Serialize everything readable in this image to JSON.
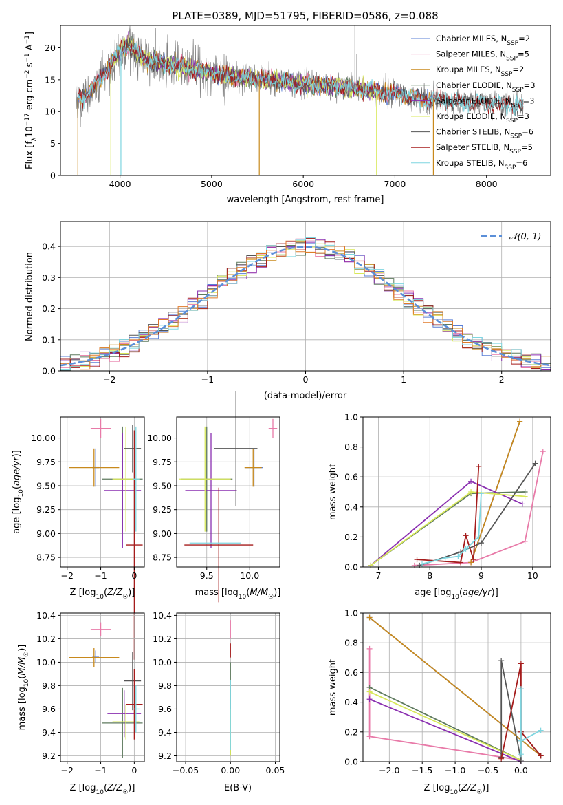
{
  "title": "PLATE=0389, MJD=51795, FIBERID=0586, z=0.088",
  "colors": {
    "Chabrier MILES": "#5a7fd6",
    "Salpeter MILES": "#e87aa8",
    "Kroupa MILES": "#c8891c",
    "Chabrier ELODIE": "#5e7a5e",
    "Salpeter ELODIE": "#8a2fb0",
    "Kroupa ELODIE": "#d8e85a",
    "Chabrier STELIB": "#555555",
    "Salpeter STELIB": "#a51c1c",
    "Kroupa STELIB": "#7fd6e0",
    "extra_orange": "#e07a28",
    "normal": "#5b8fd8",
    "grid": "#b0b0b0"
  },
  "legend1": [
    {
      "name": "Chabrier MILES",
      "nssp": "2"
    },
    {
      "name": "Salpeter MILES",
      "nssp": "5"
    },
    {
      "name": "Kroupa MILES",
      "nssp": "2"
    },
    {
      "name": "Chabrier ELODIE",
      "nssp": "3"
    },
    {
      "name": "Salpeter ELODIE",
      "nssp": "3"
    },
    {
      "name": "Kroupa ELODIE",
      "nssp": "3"
    },
    {
      "name": "Chabrier STELIB",
      "nssp": "6"
    },
    {
      "name": "Salpeter STELIB",
      "nssp": "5"
    },
    {
      "name": "Kroupa STELIB",
      "nssp": "6"
    }
  ],
  "chart_data": [
    {
      "type": "line",
      "title": "PLATE=0389, MJD=51795, FIBERID=0586, z=0.088",
      "xlabel": "wavelength [Angstrom, rest frame]",
      "ylabel": "Flux [f_λ 10^-17 erg cm^-2 s^-1 A^-1]",
      "xlim": [
        3350,
        8700
      ],
      "ylim": [
        0,
        23.5
      ],
      "xticks": [
        4000,
        5000,
        6000,
        7000,
        8000
      ],
      "yticks": [
        0,
        5,
        10,
        15,
        20
      ],
      "spectrum_trend": {
        "x": [
          3520,
          3600,
          3700,
          3800,
          3900,
          4000,
          4100,
          4200,
          4300,
          4500,
          4800,
          5100,
          5400,
          5700,
          6000,
          6300,
          6600,
          6900,
          7200,
          7500,
          7800,
          8100,
          8400
        ],
        "y": [
          12.0,
          12.5,
          13.5,
          15.5,
          17.5,
          19.5,
          20.5,
          19.0,
          18.0,
          17.5,
          16.8,
          15.7,
          15.3,
          14.8,
          14.3,
          14.0,
          13.7,
          13.0,
          12.3,
          11.8,
          11.5,
          11.3,
          11.0
        ]
      }
    },
    {
      "type": "line",
      "xlabel": "(data-model)/error",
      "ylabel": "Normed distribution",
      "xlim": [
        -2.5,
        2.5
      ],
      "ylim": [
        0,
        0.48
      ],
      "xticks": [
        -2,
        -1,
        0,
        1,
        2
      ],
      "yticks": [
        0.0,
        0.1,
        0.2,
        0.3,
        0.4
      ],
      "legend": [
        "𝒩(0, 1)"
      ],
      "series": [
        {
          "name": "𝒩(0, 1)",
          "mean": 0,
          "sigma": 1
        }
      ]
    },
    {
      "type": "scatter",
      "xlabel": "Z [log10(Z/Z☉)]",
      "ylabel": "age [log10(age/yr)]",
      "xlim": [
        -2.2,
        0.3
      ],
      "ylim": [
        8.65,
        10.22
      ],
      "xticks": [
        -2,
        -1,
        0
      ],
      "yticks": [
        8.75,
        9.0,
        9.25,
        9.5,
        9.75,
        10.0
      ],
      "points": [
        {
          "series": "Chabrier MILES",
          "x": -1.15,
          "y": 9.69,
          "xerr": 0.1,
          "yerr": 0.2
        },
        {
          "series": "Salpeter MILES",
          "x": -1.0,
          "y": 10.1,
          "xerr": 0.3,
          "yerr": 0.1
        },
        {
          "series": "Kroupa MILES",
          "x": -1.2,
          "y": 9.69,
          "xerr": 0.75,
          "yerr": 0.2
        },
        {
          "series": "Chabrier ELODIE",
          "x": -0.35,
          "y": 9.57,
          "xerr": 0.6,
          "yerr": 0.55
        },
        {
          "series": "Salpeter ELODIE",
          "x": -0.35,
          "y": 9.45,
          "xerr": 0.55,
          "yerr": 0.6
        },
        {
          "series": "Kroupa ELODIE",
          "x": -0.25,
          "y": 9.57,
          "xerr": 0.4,
          "yerr": 0.55
        },
        {
          "series": "Chabrier STELIB",
          "x": -0.05,
          "y": 9.89,
          "xerr": 0.25,
          "yerr": 0.25
        },
        {
          "series": "Salpeter STELIB",
          "x": 0.0,
          "y": 8.88,
          "xerr": 0.25,
          "yerr": 1.2
        },
        {
          "series": "Kroupa STELIB",
          "x": 0.05,
          "y": 9.57,
          "xerr": 0.1,
          "yerr": 0.55
        }
      ]
    },
    {
      "type": "scatter",
      "xlabel": "mass [log10(M/M☉)]",
      "ylabel": "",
      "xlim": [
        9.15,
        10.35
      ],
      "ylim": [
        8.65,
        10.22
      ],
      "xticks": [
        9.5,
        10.0
      ],
      "yticks": [
        8.75,
        9.0,
        9.25,
        9.5,
        9.75,
        10.0
      ],
      "points": [
        {
          "series": "Chabrier MILES",
          "x": 10.05,
          "y": 9.69,
          "xerr": 0.1,
          "yerr": 0.2
        },
        {
          "series": "Salpeter MILES",
          "x": 10.27,
          "y": 10.1,
          "xerr": 0.05,
          "yerr": 0.1
        },
        {
          "series": "Kroupa MILES",
          "x": 10.04,
          "y": 9.69,
          "xerr": 0.1,
          "yerr": 0.2
        },
        {
          "series": "Chabrier ELODIE",
          "x": 9.5,
          "y": 9.57,
          "xerr": 0.3,
          "yerr": 0.55
        },
        {
          "series": "Salpeter ELODIE",
          "x": 9.55,
          "y": 9.45,
          "xerr": 0.3,
          "yerr": 0.6
        },
        {
          "series": "Kroupa ELODIE",
          "x": 9.48,
          "y": 9.57,
          "xerr": 0.3,
          "yerr": 0.55
        },
        {
          "series": "Chabrier STELIB",
          "x": 9.84,
          "y": 9.89,
          "xerr": 0.25,
          "yerr": 0.6
        },
        {
          "series": "Salpeter STELIB",
          "x": 9.64,
          "y": 8.88,
          "xerr": 0.4,
          "yerr": 0.6
        },
        {
          "series": "Kroupa STELIB",
          "x": 9.6,
          "y": 8.9,
          "xerr": 0.3,
          "yerr": 0.0
        }
      ]
    },
    {
      "type": "line",
      "xlabel": "age [log10(age/yr)]",
      "ylabel": "mass weight",
      "xlim": [
        6.7,
        10.35
      ],
      "ylim": [
        0,
        1.0
      ],
      "xticks": [
        7,
        8,
        9,
        10
      ],
      "yticks": [
        0.0,
        0.2,
        0.4,
        0.6,
        0.8,
        1.0
      ],
      "series": [
        {
          "name": "Chabrier MILES",
          "x": [
            8.8,
            9.75
          ],
          "y": [
            0.03,
            0.97
          ]
        },
        {
          "name": "Salpeter MILES",
          "x": [
            7.7,
            8.8,
            9.85,
            10.2
          ],
          "y": [
            0.01,
            0.03,
            0.17,
            0.77
          ]
        },
        {
          "name": "Kroupa MILES",
          "x": [
            8.8,
            9.75
          ],
          "y": [
            0.03,
            0.97
          ]
        },
        {
          "name": "Chabrier ELODIE",
          "x": [
            6.85,
            8.8,
            9.85
          ],
          "y": [
            0.01,
            0.49,
            0.5
          ]
        },
        {
          "name": "Salpeter ELODIE",
          "x": [
            6.85,
            8.8,
            9.8
          ],
          "y": [
            0.01,
            0.57,
            0.42
          ]
        },
        {
          "name": "Kroupa ELODIE",
          "x": [
            6.85,
            8.8,
            9.85
          ],
          "y": [
            0.01,
            0.5,
            0.47
          ]
        },
        {
          "name": "Chabrier STELIB",
          "x": [
            7.8,
            8.6,
            9.0,
            10.05
          ],
          "y": [
            0.01,
            0.1,
            0.16,
            0.69
          ]
        },
        {
          "name": "Salpeter STELIB",
          "x": [
            7.75,
            8.6,
            8.7,
            8.85,
            8.95
          ],
          "y": [
            0.05,
            0.03,
            0.21,
            0.05,
            0.67
          ]
        },
        {
          "name": "Kroupa STELIB",
          "x": [
            7.85,
            8.3,
            8.55,
            8.7,
            8.95,
            9.0
          ],
          "y": [
            0.02,
            0.06,
            0.07,
            0.12,
            0.2,
            0.49
          ]
        }
      ]
    },
    {
      "type": "scatter",
      "xlabel": "Z [log10(Z/Z☉)]",
      "ylabel": "mass [log10(M/M☉)]",
      "xlim": [
        -2.2,
        0.3
      ],
      "ylim": [
        9.15,
        10.42
      ],
      "xticks": [
        -2,
        -1,
        0
      ],
      "yticks": [
        9.2,
        9.4,
        9.6,
        9.8,
        10.0,
        10.2,
        10.4
      ],
      "points": [
        {
          "series": "Chabrier MILES",
          "x": -1.15,
          "y": 10.05,
          "xerr": 0.1,
          "yerr": 0.05
        },
        {
          "series": "Salpeter MILES",
          "x": -1.0,
          "y": 10.28,
          "xerr": 0.3,
          "yerr": 0.06
        },
        {
          "series": "Kroupa MILES",
          "x": -1.2,
          "y": 10.04,
          "xerr": 0.75,
          "yerr": 0.08
        },
        {
          "series": "Chabrier ELODIE",
          "x": -0.35,
          "y": 9.48,
          "xerr": 0.6,
          "yerr": 0.3
        },
        {
          "series": "Salpeter ELODIE",
          "x": -0.3,
          "y": 9.56,
          "xerr": 0.5,
          "yerr": 0.2
        },
        {
          "series": "Kroupa ELODIE",
          "x": -0.25,
          "y": 9.49,
          "xerr": 0.4,
          "yerr": 0.15
        },
        {
          "series": "Chabrier STELIB",
          "x": -0.05,
          "y": 9.84,
          "xerr": 0.25,
          "yerr": 0.25
        },
        {
          "series": "Salpeter STELIB",
          "x": 0.0,
          "y": 9.64,
          "xerr": 0.25,
          "yerr": 0.3
        },
        {
          "series": "Kroupa STELIB",
          "x": 0.05,
          "y": 9.6,
          "xerr": 0.1,
          "yerr": 0.2
        }
      ]
    },
    {
      "type": "scatter",
      "xlabel": "E(B-V)",
      "ylabel": "",
      "xlim": [
        -0.06,
        0.055
      ],
      "ylim": [
        9.15,
        10.42
      ],
      "xticks": [
        -0.05,
        0.0,
        0.05
      ],
      "yticks": [
        9.2,
        9.4,
        9.6,
        9.8,
        10.0,
        10.2,
        10.4
      ],
      "points": [
        {
          "series": "Salpeter MILES",
          "x": 0.0,
          "y": 10.28,
          "yerr": 0.08
        },
        {
          "series": "Salpeter STELIB",
          "x": 0.0,
          "y": 10.1,
          "yerr": 0.06
        },
        {
          "series": "Chabrier ELODIE",
          "x": 0.0,
          "y": 9.6,
          "yerr": 0.4
        },
        {
          "series": "Kroupa ELODIE",
          "x": 0.0,
          "y": 9.4,
          "yerr": 0.2
        },
        {
          "series": "Kroupa STELIB",
          "x": 0.0,
          "y": 9.55,
          "yerr": 0.3
        }
      ]
    },
    {
      "type": "line",
      "xlabel": "Z [log10(Z/Z☉)]",
      "ylabel": "mass weight",
      "xlim": [
        -2.4,
        0.45
      ],
      "ylim": [
        0,
        1.0
      ],
      "xticks": [
        -2.0,
        -1.5,
        -1.0,
        -0.5,
        0.0
      ],
      "yticks": [
        0.0,
        0.2,
        0.4,
        0.6,
        0.8,
        1.0
      ],
      "series": [
        {
          "name": "Chabrier MILES",
          "x": [
            -2.3,
            0.3
          ],
          "y": [
            0.97,
            0.04
          ]
        },
        {
          "name": "Salpeter MILES",
          "x": [
            -2.3,
            -2.3,
            0.0
          ],
          "y": [
            0.76,
            0.17,
            0.01
          ]
        },
        {
          "name": "Kroupa MILES",
          "x": [
            -2.3,
            0.3
          ],
          "y": [
            0.97,
            0.04
          ]
        },
        {
          "name": "Chabrier ELODIE",
          "x": [
            -2.3,
            0.0
          ],
          "y": [
            0.5,
            0.01
          ]
        },
        {
          "name": "Salpeter ELODIE",
          "x": [
            -2.3,
            0.0
          ],
          "y": [
            0.42,
            0.0
          ]
        },
        {
          "name": "Kroupa ELODIE",
          "x": [
            -2.3,
            0.0
          ],
          "y": [
            0.47,
            0.01
          ]
        },
        {
          "name": "Chabrier STELIB",
          "x": [
            -0.3,
            -0.3,
            0.0,
            0.0,
            0.3
          ],
          "y": [
            0.03,
            0.68,
            0.01,
            0.2,
            0.04
          ]
        },
        {
          "name": "Salpeter STELIB",
          "x": [
            -0.3,
            0.0,
            0.0,
            0.3
          ],
          "y": [
            0.02,
            0.66,
            0.2,
            0.04
          ]
        },
        {
          "name": "Kroupa STELIB",
          "x": [
            0.0,
            0.0,
            0.0,
            0.3
          ],
          "y": [
            0.05,
            0.49,
            0.14,
            0.21
          ]
        }
      ]
    }
  ]
}
